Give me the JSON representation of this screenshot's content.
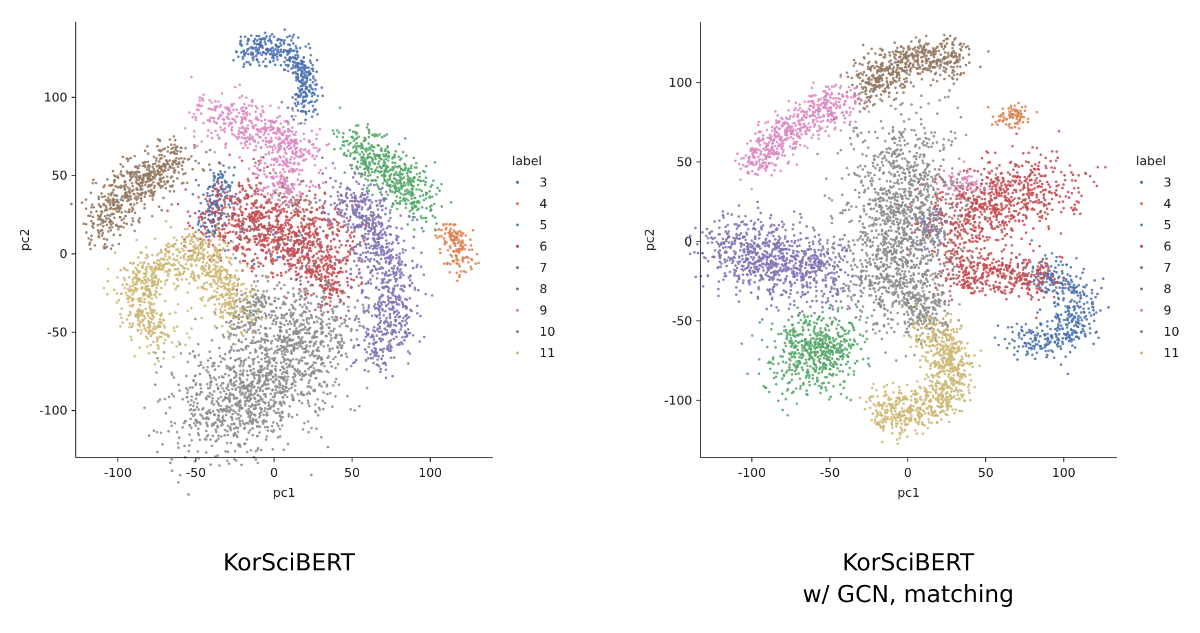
{
  "chart_data": [
    {
      "type": "scatter",
      "xlabel": "pc1",
      "ylabel": "pc2",
      "xlim": [
        -127,
        140
      ],
      "ylim": [
        -130,
        148
      ],
      "xticks": [
        -100,
        -50,
        0,
        50,
        100
      ],
      "yticks": [
        -100,
        -50,
        0,
        50,
        100
      ],
      "legend_title": "label",
      "legend_position": "right",
      "series": [
        {
          "name": "3",
          "color": "#4C72B0",
          "clusters": [
            {
              "path": [
                [
                  -20,
                  128
                ],
                [
                  0,
                  133
                ],
                [
                  15,
                  125
                ],
                [
                  22,
                  108
                ],
                [
                  18,
                  93
                ]
              ],
              "spread": 5,
              "count": 420
            },
            {
              "path": [
                [
                  -33,
                  55
                ],
                [
                  -38,
                  30
                ],
                [
                  -40,
                  15
                ]
              ],
              "spread": 5,
              "count": 160
            },
            {
              "path": [
                [
                  -30,
                  25
                ],
                [
                  10,
                  5
                ],
                [
                  30,
                  -5
                ]
              ],
              "spread": 10,
              "count": 40
            }
          ]
        },
        {
          "name": "4",
          "color": "#DD8452",
          "clusters": [
            {
              "path": [
                [
                  113,
                  15
                ],
                [
                  118,
                  2
                ],
                [
                  122,
                  -10
                ]
              ],
              "spread": 5,
              "count": 150
            }
          ]
        },
        {
          "name": "5",
          "color": "#55A868",
          "clusters": [
            {
              "path": [
                [
                  50,
                  72
                ],
                [
                  70,
                  55
                ],
                [
                  88,
                  42
                ],
                [
                  93,
                  30
                ]
              ],
              "spread": 8,
              "count": 500
            }
          ]
        },
        {
          "name": "6",
          "color": "#C44E52",
          "clusters": [
            {
              "path": [
                [
                  -35,
                  25
                ],
                [
                  -10,
                  18
                ],
                [
                  15,
                  12
                ],
                [
                  35,
                  5
                ]
              ],
              "spread": 13,
              "count": 900
            },
            {
              "path": [
                [
                  20,
                  -5
                ],
                [
                  32,
                  -12
                ],
                [
                  40,
                  -25
                ]
              ],
              "spread": 8,
              "count": 200
            }
          ]
        },
        {
          "name": "7",
          "color": "#8172B3",
          "clusters": [
            {
              "path": [
                [
                  45,
                  40
                ],
                [
                  65,
                  15
                ],
                [
                  75,
                  -15
                ],
                [
                  75,
                  -40
                ],
                [
                  65,
                  -65
                ]
              ],
              "spread": 9,
              "count": 800
            }
          ]
        },
        {
          "name": "8",
          "color": "#937860",
          "clusters": [
            {
              "path": [
                [
                  -112,
                  15
                ],
                [
                  -95,
                  40
                ],
                [
                  -75,
                  52
                ],
                [
                  -58,
                  60
                ]
              ],
              "spread": 8,
              "count": 560
            },
            {
              "path": [
                [
                  -5,
                  48
                ],
                [
                  10,
                  38
                ],
                [
                  20,
                  30
                ]
              ],
              "spread": 6,
              "count": 40
            }
          ]
        },
        {
          "name": "9",
          "color": "#DA8BC3",
          "clusters": [
            {
              "path": [
                [
                  -45,
                  90
                ],
                [
                  -25,
                  85
                ],
                [
                  -5,
                  80
                ],
                [
                  15,
                  70
                ],
                [
                  20,
                  55
                ]
              ],
              "spread": 8,
              "count": 450
            },
            {
              "path": [
                [
                  -5,
                  60
                ],
                [
                  5,
                  45
                ],
                [
                  10,
                  35
                ]
              ],
              "spread": 7,
              "count": 150
            }
          ]
        },
        {
          "name": "10",
          "color": "#8C8C8C",
          "clusters": [
            {
              "path": [
                [
                  -45,
                  -105
                ],
                [
                  -10,
                  -85
                ],
                [
                  15,
                  -60
                ],
                [
                  30,
                  -40
                ]
              ],
              "spread": 18,
              "count": 1500
            },
            {
              "path": [
                [
                  -5,
                  -25
                ],
                [
                  -15,
                  -35
                ],
                [
                  -25,
                  -45
                ]
              ],
              "spread": 5,
              "count": 120
            }
          ]
        },
        {
          "name": "11",
          "color": "#CCB974",
          "clusters": [
            {
              "path": [
                [
                  -65,
                  -55
                ],
                [
                  -88,
                  -38
                ],
                [
                  -82,
                  -12
                ],
                [
                  -55,
                  0
                ],
                [
                  -45,
                  5
                ],
                [
                  -35,
                  -18
                ],
                [
                  -20,
                  -40
                ]
              ],
              "spread": 8,
              "count": 900
            }
          ]
        }
      ]
    },
    {
      "type": "scatter",
      "xlabel": "pc1",
      "ylabel": "pc2",
      "xlim": [
        -133,
        134
      ],
      "ylim": [
        -136,
        138
      ],
      "xticks": [
        -100,
        -50,
        0,
        50,
        100
      ],
      "yticks": [
        -100,
        -50,
        0,
        50,
        100
      ],
      "legend_title": "label",
      "legend_position": "right",
      "series": [
        {
          "name": "3",
          "color": "#4C72B0",
          "clusters": [
            {
              "path": [
                [
                  80,
                  -20
                ],
                [
                  108,
                  -30
                ],
                [
                  110,
                  -50
                ],
                [
                  85,
                  -65
                ],
                [
                  70,
                  -62
                ]
              ],
              "spread": 7,
              "count": 450
            }
          ]
        },
        {
          "name": "4",
          "color": "#DD8452",
          "clusters": [
            {
              "path": [
                [
                  60,
                  75
                ],
                [
                  68,
                  82
                ],
                [
                  75,
                  78
                ]
              ],
              "spread": 4,
              "count": 80
            }
          ]
        },
        {
          "name": "5",
          "color": "#55A868",
          "clusters": [
            {
              "path": [
                [
                  -75,
                  -75
                ],
                [
                  -60,
                  -70
                ],
                [
                  -45,
                  -65
                ]
              ],
              "spread": 12,
              "count": 550
            }
          ]
        },
        {
          "name": "6",
          "color": "#C44E52",
          "clusters": [
            {
              "path": [
                [
                  20,
                  10
                ],
                [
                  55,
                  25
                ],
                [
                  80,
                  35
                ],
                [
                  95,
                  30
                ]
              ],
              "spread": 12,
              "count": 750
            },
            {
              "path": [
                [
                  25,
                  -20
                ],
                [
                  60,
                  -20
                ],
                [
                  90,
                  -25
                ]
              ],
              "spread": 7,
              "count": 400
            }
          ]
        },
        {
          "name": "7",
          "color": "#8172B3",
          "clusters": [
            {
              "path": [
                [
                  -118,
                  -3
                ],
                [
                  -95,
                  -10
                ],
                [
                  -75,
                  -15
                ],
                [
                  -50,
                  -20
                ]
              ],
              "spread": 12,
              "count": 850
            },
            {
              "path": [
                [
                  12,
                  -5
                ],
                [
                  18,
                  15
                ]
              ],
              "spread": 5,
              "count": 60
            }
          ]
        },
        {
          "name": "8",
          "color": "#937860",
          "clusters": [
            {
              "path": [
                [
                  -30,
                  95
                ],
                [
                  -10,
                  110
                ],
                [
                  15,
                  115
                ],
                [
                  35,
                  115
                ]
              ],
              "spread": 7,
              "count": 550
            }
          ]
        },
        {
          "name": "9",
          "color": "#DA8BC3",
          "clusters": [
            {
              "path": [
                [
                  -98,
                  48
                ],
                [
                  -80,
                  68
                ],
                [
                  -60,
                  80
                ],
                [
                  -40,
                  90
                ]
              ],
              "spread": 7,
              "count": 550
            },
            {
              "path": [
                [
                  25,
                  35
                ],
                [
                  45,
                  38
                ]
              ],
              "spread": 5,
              "count": 60
            }
          ]
        },
        {
          "name": "10",
          "color": "#8C8C8C",
          "clusters": [
            {
              "path": [
                [
                  0,
                  60
                ],
                [
                  -3,
                  30
                ],
                [
                  -8,
                  0
                ],
                [
                  -10,
                  -20
                ],
                [
                  -5,
                  -40
                ]
              ],
              "spread": 17,
              "count": 1400
            },
            {
              "path": [
                [
                  5,
                  -35
                ],
                [
                  15,
                  -50
                ]
              ],
              "spread": 7,
              "count": 150
            }
          ]
        },
        {
          "name": "11",
          "color": "#CCB974",
          "clusters": [
            {
              "path": [
                [
                  10,
                  -55
                ],
                [
                  25,
                  -65
                ],
                [
                  30,
                  -88
                ],
                [
                  10,
                  -105
                ],
                [
                  -10,
                  -110
                ],
                [
                  -20,
                  -102
                ]
              ],
              "spread": 7,
              "count": 800
            }
          ]
        }
      ]
    }
  ],
  "captions": {
    "left": "KorSciBERT",
    "right_line1": "KorSciBERT",
    "right_line2": "w/ GCN, matching"
  }
}
